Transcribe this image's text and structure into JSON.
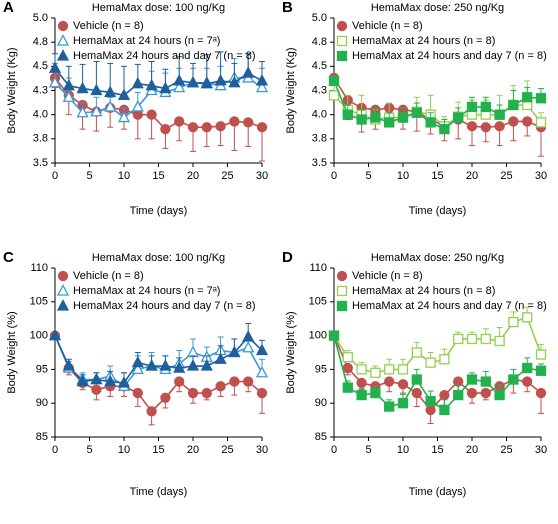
{
  "chart_data": [
    {
      "type": "line",
      "label": "A",
      "title": "HemaMax dose: 100 ng/Kg",
      "x_label": "Time (days)",
      "y_label": "Body Weight (Kg)",
      "x": [
        0,
        2,
        4,
        6,
        8,
        10,
        12,
        14,
        16,
        18,
        20,
        22,
        24,
        26,
        28,
        30
      ],
      "xlim": [
        0,
        30
      ],
      "xticks": [
        0,
        5,
        10,
        15,
        20,
        25,
        30
      ],
      "ylim": [
        3.5,
        5.0
      ],
      "yticks": [
        3.5,
        {
          "value": 3.75,
          "label": "3.8"
        },
        {
          "value": 4,
          "label": "4.0"
        },
        {
          "value": 4.25,
          "label": "4.3"
        },
        4.5,
        {
          "value": 4.75,
          "label": "4.8"
        },
        {
          "value": 5,
          "label": "5.0"
        }
      ],
      "series": [
        {
          "name": "Vehicle (n = 8)",
          "color": "#c0504d",
          "marker": "circle",
          "filled": true,
          "error_direction": "down",
          "values": [
            4.38,
            4.2,
            4.1,
            4.03,
            4.07,
            4.05,
            4.0,
            4.0,
            3.85,
            3.93,
            3.87,
            3.87,
            3.88,
            3.93,
            3.92,
            3.87
          ],
          "errors": [
            0.1,
            0.2,
            0.25,
            0.2,
            0.2,
            0.2,
            0.25,
            0.25,
            0.2,
            0.2,
            0.25,
            0.2,
            0.2,
            0.3,
            0.25,
            0.35
          ]
        },
        {
          "name": "HemaMax at 24 hours (n = 7ᵃ)",
          "color": "#3a9ad9",
          "marker": "triangle",
          "filled": false,
          "error_direction": "up",
          "values": [
            4.33,
            4.18,
            4.02,
            4.03,
            4.08,
            3.97,
            4.08,
            4.25,
            4.23,
            4.28,
            4.33,
            4.33,
            4.3,
            4.38,
            4.38,
            4.28
          ],
          "errors": [
            0.2,
            0.2,
            0.1,
            0.15,
            0.1,
            0.1,
            0.15,
            0.2,
            0.2,
            0.2,
            0.15,
            0.15,
            0.2,
            0.2,
            0.25,
            0.2
          ]
        },
        {
          "name": "HemaMax 24 hours and day 7 (n = 8)",
          "color": "#1f5f9e",
          "marker": "triangle",
          "filled": true,
          "error_direction": "up",
          "values": [
            4.48,
            4.3,
            4.27,
            4.25,
            4.23,
            4.2,
            4.32,
            4.3,
            4.27,
            4.35,
            4.33,
            4.32,
            4.35,
            4.33,
            4.43,
            4.35
          ],
          "errors": [
            0.15,
            0.2,
            0.25,
            0.3,
            0.3,
            0.3,
            0.2,
            0.25,
            0.2,
            0.25,
            0.2,
            0.3,
            0.3,
            0.2,
            0.2,
            0.2
          ]
        }
      ]
    },
    {
      "type": "line",
      "label": "B",
      "title": "HemaMax dose: 250 ng/Kg",
      "x_label": "Time (days)",
      "y_label": "Body Weight (Kg)",
      "x": [
        0,
        2,
        4,
        6,
        8,
        10,
        12,
        14,
        16,
        18,
        20,
        22,
        24,
        26,
        28,
        30
      ],
      "xlim": [
        0,
        30
      ],
      "xticks": [
        0,
        5,
        10,
        15,
        20,
        25,
        30
      ],
      "ylim": [
        3.5,
        5.0
      ],
      "yticks": [
        3.5,
        {
          "value": 3.75,
          "label": "3.8"
        },
        {
          "value": 4,
          "label": "4.0"
        },
        {
          "value": 4.25,
          "label": "4.3"
        },
        4.5,
        {
          "value": 4.75,
          "label": "4.8"
        },
        {
          "value": 5,
          "label": "5.0"
        }
      ],
      "series": [
        {
          "name": "Vehicle (n = 8)",
          "color": "#c0504d",
          "marker": "circle",
          "filled": true,
          "error_direction": "down",
          "values": [
            4.38,
            4.15,
            4.07,
            4.05,
            4.07,
            4.05,
            4.03,
            3.95,
            3.88,
            3.95,
            3.88,
            3.87,
            3.88,
            3.93,
            3.93,
            3.87
          ],
          "errors": [
            0.15,
            0.2,
            0.25,
            0.2,
            0.15,
            0.2,
            0.2,
            0.15,
            0.15,
            0.2,
            0.2,
            0.15,
            0.2,
            0.2,
            0.15,
            0.3
          ]
        },
        {
          "name": "HemaMax at 24 hours (n = 8)",
          "color": "#92d050",
          "marker": "square",
          "filled": false,
          "error_direction": "up",
          "values": [
            4.2,
            4.05,
            4.0,
            3.95,
            3.97,
            3.97,
            4.03,
            4.0,
            3.88,
            3.98,
            4.0,
            4.0,
            4.0,
            4.1,
            4.1,
            3.92
          ],
          "errors": [
            0.1,
            0.15,
            0.2,
            0.1,
            0.15,
            0.1,
            0.15,
            0.2,
            0.1,
            0.15,
            0.15,
            0.15,
            0.2,
            0.2,
            0.25,
            0.1
          ]
        },
        {
          "name": "HemaMax at 24 hours and day 7 (n = 8)",
          "color": "#22b14c",
          "marker": "square",
          "filled": true,
          "error_direction": "up",
          "values": [
            4.35,
            4.0,
            3.95,
            3.97,
            3.92,
            3.97,
            4.02,
            3.92,
            3.85,
            3.97,
            4.08,
            4.08,
            4.0,
            4.1,
            4.18,
            4.17
          ],
          "errors": [
            0.05,
            0.1,
            0.1,
            0.1,
            0.1,
            0.1,
            0.1,
            0.1,
            0.1,
            0.1,
            0.1,
            0.1,
            0.1,
            0.15,
            0.1,
            0.1
          ]
        }
      ]
    },
    {
      "type": "line",
      "label": "C",
      "title": "HemaMax dose: 100 ng/Kg",
      "x_label": "Time (days)",
      "y_label": "Body Weight (%)",
      "x": [
        0,
        2,
        4,
        6,
        8,
        10,
        12,
        14,
        16,
        18,
        20,
        22,
        24,
        26,
        28,
        30
      ],
      "xlim": [
        0,
        30
      ],
      "xticks": [
        0,
        5,
        10,
        15,
        20,
        25,
        30
      ],
      "ylim": [
        85,
        110
      ],
      "yticks": [
        85,
        90,
        95,
        100,
        105,
        110
      ],
      "series": [
        {
          "name": "Vehicle (n = 8)",
          "color": "#c0504d",
          "marker": "circle",
          "filled": true,
          "error_direction": "down",
          "values": [
            100,
            95.2,
            93,
            92,
            92.5,
            92.5,
            91.5,
            88.8,
            90.8,
            93.2,
            91.5,
            91.5,
            92.5,
            93.2,
            93.2,
            91.5
          ],
          "errors": [
            0,
            1,
            1,
            1.5,
            1.5,
            1.5,
            2,
            2,
            1.5,
            1.5,
            1.5,
            1,
            1.5,
            2,
            1.5,
            3
          ]
        },
        {
          "name": "HemaMax at 24 hours (n = 7ᵃ)",
          "color": "#3a9ad9",
          "marker": "triangle",
          "filled": false,
          "error_direction": "up",
          "values": [
            100,
            95.2,
            93.5,
            93.5,
            94,
            92.5,
            95,
            95.5,
            95,
            95.8,
            97.5,
            96.8,
            97.8,
            97.5,
            98.2,
            94.5
          ],
          "errors": [
            0,
            1,
            1,
            1,
            1.5,
            2,
            2,
            2,
            2,
            2,
            2,
            1.5,
            2,
            2,
            1.5,
            2
          ]
        },
        {
          "name": "HemaMax 24 hours and day 7 (n = 8)",
          "color": "#1f5f9e",
          "marker": "triangle",
          "filled": true,
          "error_direction": "up",
          "values": [
            100,
            95.5,
            93.2,
            93.5,
            93.2,
            93,
            96,
            95.5,
            95.5,
            95.2,
            95.5,
            95.5,
            96.5,
            97.5,
            99.8,
            97.8
          ],
          "errors": [
            0,
            1,
            1,
            1,
            1.5,
            1.5,
            1.5,
            1.5,
            1.5,
            1.5,
            1.5,
            1.5,
            2,
            2,
            2,
            1.5
          ]
        }
      ]
    },
    {
      "type": "line",
      "label": "D",
      "title": "HemaMax dose: 250 ng/Kg",
      "x_label": "Time (days)",
      "y_label": "Body Weight (%)",
      "x": [
        0,
        2,
        4,
        6,
        8,
        10,
        12,
        14,
        16,
        18,
        20,
        22,
        24,
        26,
        28,
        30
      ],
      "xlim": [
        0,
        30
      ],
      "xticks": [
        0,
        5,
        10,
        15,
        20,
        25,
        30
      ],
      "ylim": [
        85,
        110
      ],
      "yticks": [
        85,
        90,
        95,
        100,
        105,
        110
      ],
      "series": [
        {
          "name": "Vehicle (n = 8)",
          "color": "#c0504d",
          "marker": "circle",
          "filled": true,
          "error_direction": "down",
          "values": [
            100,
            95.2,
            93,
            92.5,
            93.2,
            92.8,
            91.5,
            89,
            91.2,
            93.2,
            91.5,
            91.5,
            92.5,
            93.5,
            93.2,
            91.5
          ],
          "errors": [
            0,
            1,
            1,
            1.5,
            1.5,
            1.5,
            2,
            2,
            1.5,
            1.5,
            1.5,
            1,
            1.5,
            2,
            1.5,
            3
          ]
        },
        {
          "name": "HemaMax at 24 hours (n = 8)",
          "color": "#92d050",
          "marker": "square",
          "filled": false,
          "error_direction": "up",
          "values": [
            100,
            96.8,
            95,
            94.5,
            95,
            95,
            97.5,
            96,
            96.5,
            99.5,
            99.5,
            99.5,
            99.2,
            102,
            102.7,
            97.2
          ],
          "errors": [
            0,
            1,
            1,
            1,
            1.5,
            1.5,
            1.5,
            1.5,
            1.5,
            1,
            1,
            1.5,
            2,
            1.5,
            1.5,
            1.5
          ]
        },
        {
          "name": "HemaMax at 24 hours and day 7 (n = 8)",
          "color": "#22b14c",
          "marker": "square",
          "filled": true,
          "error_direction": "up",
          "values": [
            100,
            92.3,
            91.2,
            91.5,
            89.5,
            90,
            93.5,
            90.3,
            89,
            91.2,
            93.5,
            93.2,
            91.2,
            93.5,
            95.2,
            94.8
          ],
          "errors": [
            0,
            1,
            1,
            1,
            1,
            1.5,
            1.5,
            1.5,
            1.5,
            1.5,
            1,
            1.5,
            1.5,
            1.5,
            1.5,
            1
          ]
        }
      ]
    }
  ]
}
